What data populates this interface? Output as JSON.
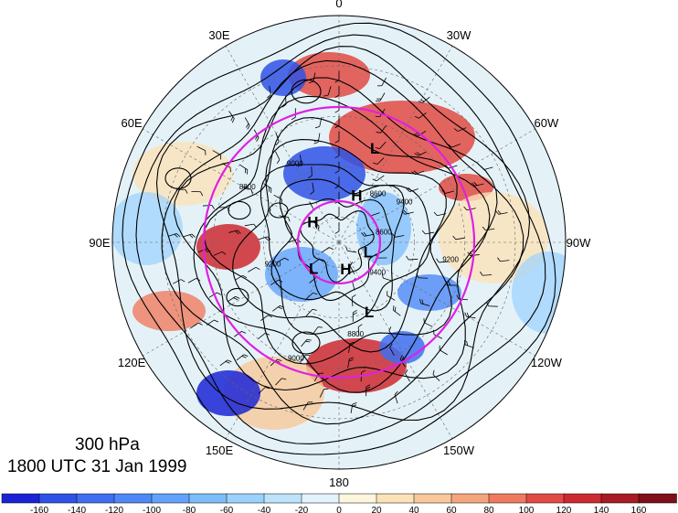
{
  "lon_labels": [
    "0",
    "30W",
    "60W",
    "90W",
    "120W",
    "150W",
    "180",
    "150E",
    "120E",
    "90E",
    "60E",
    "30E"
  ],
  "pressure_label": "300 hPa",
  "time_label": "1800 UTC 31 Jan 1999",
  "systems": [
    {
      "label": "L",
      "lon": 22,
      "lat": 52
    },
    {
      "label": "H",
      "lon": 23,
      "lat": 72
    },
    {
      "label": "L",
      "lon": 117,
      "lat": 77
    },
    {
      "label": "H",
      "lon": 168,
      "lat": 77
    },
    {
      "label": "L",
      "lon": 219,
      "lat": 74
    },
    {
      "label": "L",
      "lon": 158,
      "lat": 58
    },
    {
      "label": "H",
      "lon": 300,
      "lat": 78
    }
  ],
  "contour_labels": [
    "9400",
    "9200",
    "9000",
    "8800",
    "8600"
  ],
  "colorbar": {
    "ticks": [
      "-160",
      "-140",
      "-120",
      "-100",
      "-80",
      "-60",
      "-40",
      "-20",
      "0",
      "20",
      "40",
      "60",
      "80",
      "100",
      "120",
      "140",
      "160"
    ],
    "colors": [
      "#1a24d6",
      "#2f52e6",
      "#3f6ff0",
      "#4f88f6",
      "#62a2fb",
      "#7cbcfd",
      "#9bd2fd",
      "#bde3fc",
      "#e2f3fb",
      "#fdf5dc",
      "#fbe2b9",
      "#f8c89a",
      "#f5a57c",
      "#ef7a5f",
      "#e24b44",
      "#cc2a30",
      "#a81a24",
      "#7d1018"
    ]
  }
}
